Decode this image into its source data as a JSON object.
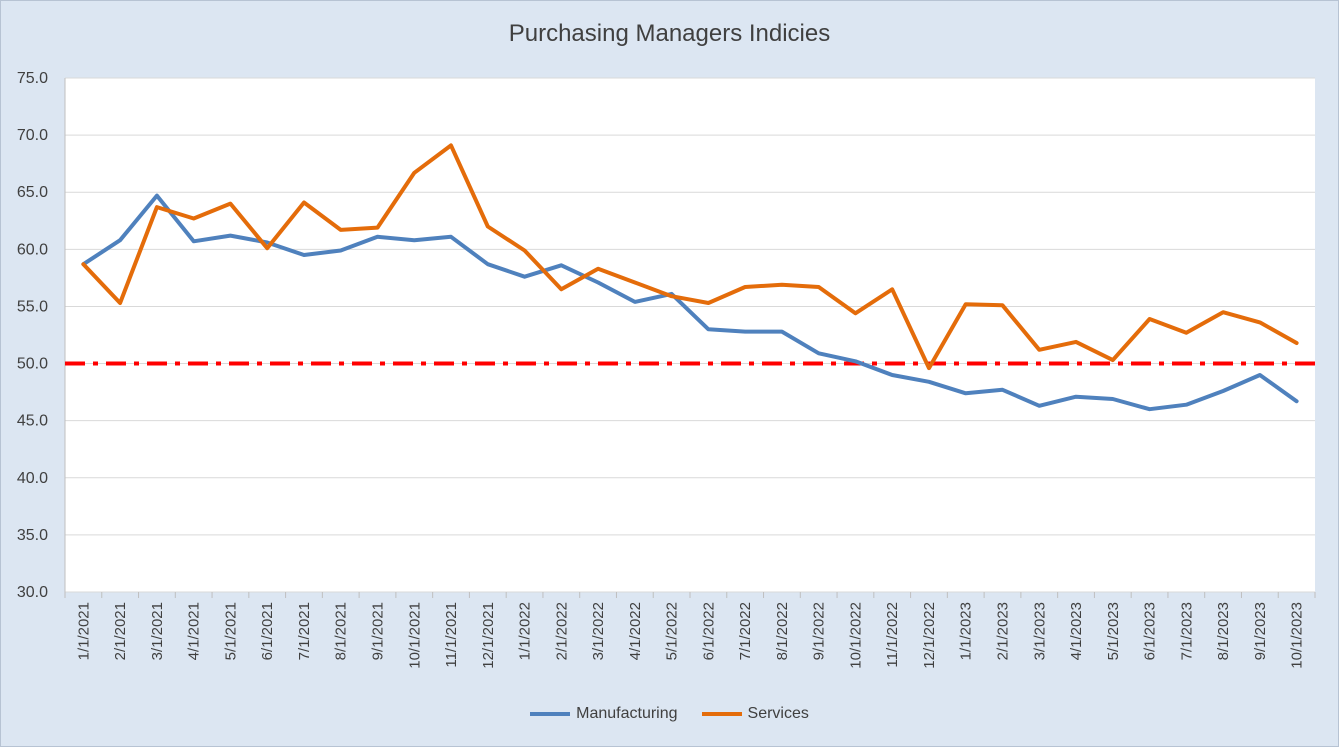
{
  "chart_data": {
    "type": "line",
    "title": "Purchasing Managers Indicies",
    "xlabel": "",
    "ylabel": "",
    "ylim": [
      30,
      75
    ],
    "yticks": [
      "30.0",
      "35.0",
      "40.0",
      "45.0",
      "50.0",
      "55.0",
      "60.0",
      "65.0",
      "70.0",
      "75.0"
    ],
    "grid": true,
    "legend_position": "bottom",
    "categories": [
      "1/1/2021",
      "2/1/2021",
      "3/1/2021",
      "4/1/2021",
      "5/1/2021",
      "6/1/2021",
      "7/1/2021",
      "8/1/2021",
      "9/1/2021",
      "10/1/2021",
      "11/1/2021",
      "12/1/2021",
      "1/1/2022",
      "2/1/2022",
      "3/1/2022",
      "4/1/2022",
      "5/1/2022",
      "6/1/2022",
      "7/1/2022",
      "8/1/2022",
      "9/1/2022",
      "10/1/2022",
      "11/1/2022",
      "12/1/2022",
      "1/1/2023",
      "2/1/2023",
      "3/1/2023",
      "4/1/2023",
      "5/1/2023",
      "6/1/2023",
      "7/1/2023",
      "8/1/2023",
      "9/1/2023",
      "10/1/2023"
    ],
    "series": [
      {
        "name": "Manufacturing",
        "color": "#4f81bd",
        "values": [
          58.7,
          60.8,
          64.7,
          60.7,
          61.2,
          60.6,
          59.5,
          59.9,
          61.1,
          60.8,
          61.1,
          58.7,
          57.6,
          58.6,
          57.1,
          55.4,
          56.1,
          53.0,
          52.8,
          52.8,
          50.9,
          50.2,
          49.0,
          48.4,
          47.4,
          47.7,
          46.3,
          47.1,
          46.9,
          46.0,
          46.4,
          47.6,
          49.0,
          46.7
        ]
      },
      {
        "name": "Services",
        "color": "#e46c0a",
        "values": [
          58.7,
          55.3,
          63.7,
          62.7,
          64.0,
          60.1,
          64.1,
          61.7,
          61.9,
          66.7,
          69.1,
          62.0,
          59.9,
          56.5,
          58.3,
          57.1,
          55.9,
          55.3,
          56.7,
          56.9,
          56.7,
          54.4,
          56.5,
          49.6,
          55.2,
          55.1,
          51.2,
          51.9,
          50.3,
          53.9,
          52.7,
          54.5,
          53.6,
          51.8
        ]
      }
    ],
    "reference_line": {
      "value": 50.0,
      "color": "#ff0000",
      "style": "dash-dot"
    }
  }
}
